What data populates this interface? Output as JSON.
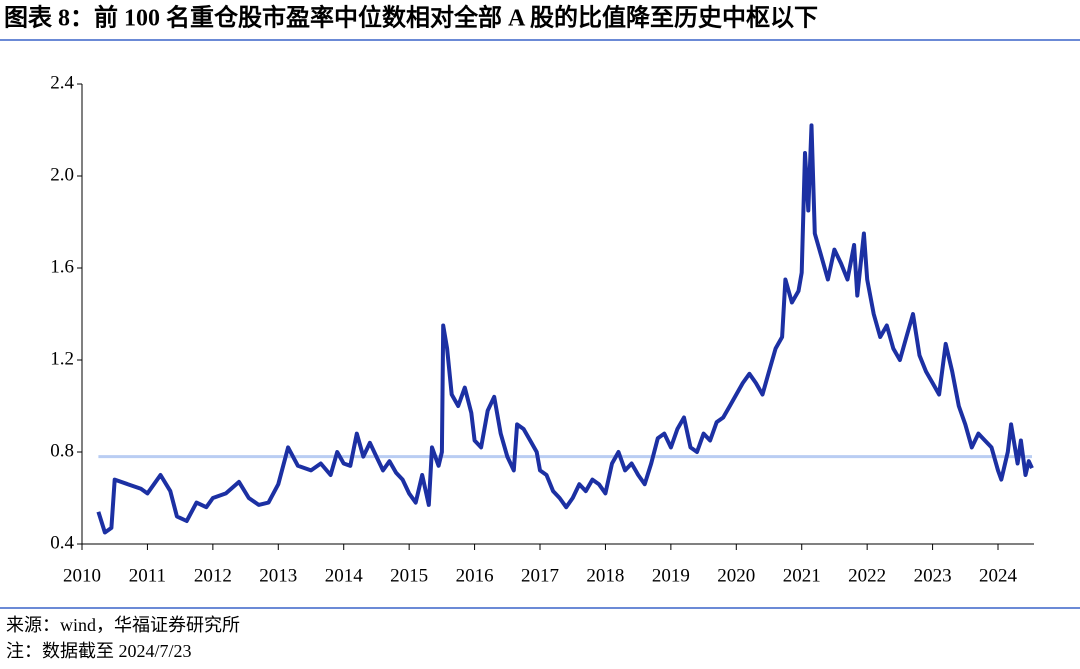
{
  "title": "图表 8：前 100 名重仓股市盈率中位数相对全部 A 股的比值降至历史中枢以下",
  "source": "来源：wind，华福证券研究所",
  "note": "注：数据截至 2024/7/23",
  "chart_data": {
    "type": "line",
    "xlim": [
      2010,
      2024.55
    ],
    "xticks": [
      2010,
      2011,
      2012,
      2013,
      2014,
      2015,
      2016,
      2017,
      2018,
      2019,
      2020,
      2021,
      2022,
      2023,
      2024
    ],
    "ylim": [
      0.4,
      2.4
    ],
    "yticks": [
      0.4,
      0.8,
      1.2,
      1.6,
      {
        "value": 2,
        "label": "2.0"
      },
      2.4
    ],
    "grid": false,
    "series": [
      {
        "color": "#b9cdf3",
        "x": [
          2010.25,
          2024.52
        ],
        "values": [
          0.78,
          0.78
        ]
      },
      {
        "color": "#1c30a3",
        "x": [
          2010.25,
          2010.35,
          2010.45,
          2010.5,
          2010.7,
          2010.9,
          2011.0,
          2011.1,
          2011.2,
          2011.35,
          2011.45,
          2011.6,
          2011.75,
          2011.9,
          2012.0,
          2012.2,
          2012.4,
          2012.55,
          2012.7,
          2012.85,
          2013.0,
          2013.15,
          2013.3,
          2013.5,
          2013.65,
          2013.8,
          2013.9,
          2014.0,
          2014.1,
          2014.2,
          2014.3,
          2014.4,
          2014.5,
          2014.6,
          2014.7,
          2014.8,
          2014.9,
          2015.0,
          2015.1,
          2015.2,
          2015.3,
          2015.35,
          2015.45,
          2015.5,
          2015.52,
          2015.58,
          2015.65,
          2015.75,
          2015.85,
          2015.95,
          2016.0,
          2016.1,
          2016.2,
          2016.3,
          2016.4,
          2016.5,
          2016.6,
          2016.65,
          2016.75,
          2016.85,
          2016.95,
          2017.0,
          2017.1,
          2017.2,
          2017.3,
          2017.4,
          2017.5,
          2017.6,
          2017.7,
          2017.8,
          2017.9,
          2018.0,
          2018.1,
          2018.2,
          2018.3,
          2018.4,
          2018.5,
          2018.6,
          2018.7,
          2018.8,
          2018.9,
          2019.0,
          2019.1,
          2019.2,
          2019.3,
          2019.4,
          2019.5,
          2019.6,
          2019.7,
          2019.8,
          2019.9,
          2020.0,
          2020.1,
          2020.2,
          2020.3,
          2020.4,
          2020.5,
          2020.6,
          2020.7,
          2020.75,
          2020.85,
          2020.95,
          2021.0,
          2021.05,
          2021.1,
          2021.15,
          2021.2,
          2021.3,
          2021.4,
          2021.5,
          2021.6,
          2021.7,
          2021.8,
          2021.85,
          2021.95,
          2022.0,
          2022.1,
          2022.2,
          2022.3,
          2022.4,
          2022.5,
          2022.6,
          2022.7,
          2022.8,
          2022.9,
          2023.0,
          2023.1,
          2023.2,
          2023.3,
          2023.4,
          2023.5,
          2023.6,
          2023.7,
          2023.8,
          2023.9,
          2024.0,
          2024.05,
          2024.15,
          2024.2,
          2024.3,
          2024.35,
          2024.42,
          2024.47,
          2024.52
        ],
        "values": [
          0.54,
          0.45,
          0.47,
          0.68,
          0.66,
          0.64,
          0.62,
          0.66,
          0.7,
          0.63,
          0.52,
          0.5,
          0.58,
          0.56,
          0.6,
          0.62,
          0.67,
          0.6,
          0.57,
          0.58,
          0.66,
          0.82,
          0.74,
          0.72,
          0.75,
          0.7,
          0.8,
          0.75,
          0.74,
          0.88,
          0.78,
          0.84,
          0.78,
          0.72,
          0.76,
          0.71,
          0.68,
          0.62,
          0.58,
          0.7,
          0.57,
          0.82,
          0.74,
          0.8,
          1.35,
          1.25,
          1.05,
          1.0,
          1.08,
          0.97,
          0.85,
          0.82,
          0.98,
          1.04,
          0.88,
          0.78,
          0.72,
          0.92,
          0.9,
          0.85,
          0.8,
          0.72,
          0.7,
          0.63,
          0.6,
          0.56,
          0.6,
          0.66,
          0.63,
          0.68,
          0.66,
          0.62,
          0.75,
          0.8,
          0.72,
          0.75,
          0.7,
          0.66,
          0.75,
          0.86,
          0.88,
          0.82,
          0.9,
          0.95,
          0.82,
          0.8,
          0.88,
          0.85,
          0.93,
          0.95,
          1.0,
          1.05,
          1.1,
          1.14,
          1.1,
          1.05,
          1.15,
          1.25,
          1.3,
          1.55,
          1.45,
          1.5,
          1.58,
          2.1,
          1.85,
          2.22,
          1.75,
          1.65,
          1.55,
          1.68,
          1.62,
          1.55,
          1.7,
          1.48,
          1.75,
          1.55,
          1.4,
          1.3,
          1.35,
          1.25,
          1.2,
          1.3,
          1.4,
          1.22,
          1.15,
          1.1,
          1.05,
          1.27,
          1.15,
          1.0,
          0.92,
          0.82,
          0.88,
          0.85,
          0.82,
          0.72,
          0.68,
          0.8,
          0.92,
          0.75,
          0.85,
          0.7,
          0.76,
          0.73
        ]
      }
    ]
  }
}
